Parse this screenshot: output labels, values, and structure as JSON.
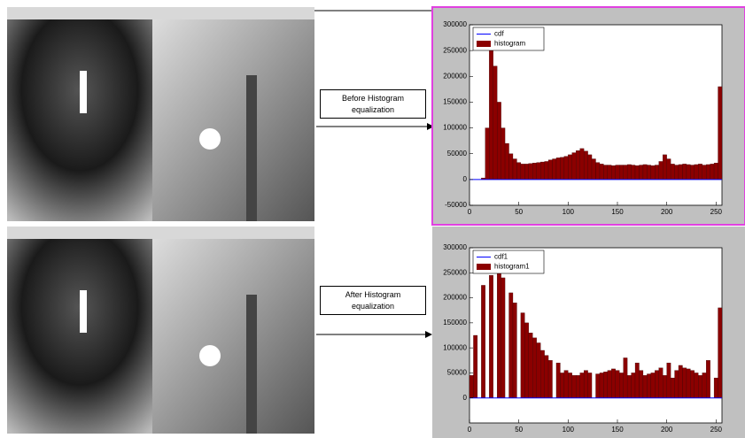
{
  "annotations": [
    "Before Histogram equalization",
    "After Histogram equalization"
  ],
  "chart_data": [
    {
      "type": "histogram",
      "bins": [
        0,
        4,
        8,
        12,
        16,
        20,
        24,
        28,
        32,
        36,
        40,
        44,
        48,
        52,
        56,
        60,
        64,
        68,
        72,
        76,
        80,
        84,
        88,
        92,
        96,
        100,
        104,
        108,
        112,
        116,
        120,
        124,
        128,
        132,
        136,
        140,
        144,
        148,
        152,
        156,
        160,
        164,
        168,
        172,
        176,
        180,
        184,
        188,
        192,
        196,
        200,
        204,
        208,
        212,
        216,
        220,
        224,
        228,
        232,
        236,
        240,
        244,
        248,
        252,
        256
      ],
      "series": [
        {
          "name": "histogram",
          "color": "#8b0000",
          "values": [
            0,
            0,
            0,
            3000,
            100000,
            270000,
            220000,
            150000,
            100000,
            70000,
            50000,
            40000,
            33000,
            30000,
            30000,
            31000,
            32000,
            33000,
            34000,
            35000,
            38000,
            40000,
            42000,
            43000,
            45000,
            48000,
            52000,
            56000,
            60000,
            55000,
            48000,
            40000,
            33000,
            30000,
            28000,
            28000,
            27000,
            28000,
            28000,
            28000,
            29000,
            28000,
            27000,
            28000,
            29000,
            28000,
            27000,
            28000,
            35000,
            48000,
            40000,
            30000,
            28000,
            29000,
            30000,
            29000,
            28000,
            29000,
            30000,
            28000,
            29000,
            30000,
            32000,
            180000
          ]
        }
      ],
      "lines": [
        {
          "name": "cdf",
          "color": "#0000ff",
          "x": [
            0,
            256
          ],
          "values": [
            0,
            0
          ]
        }
      ],
      "xlim": [
        0,
        256
      ],
      "xticks": [
        0,
        50,
        100,
        150,
        200,
        250
      ],
      "ylim": [
        -50000,
        300000
      ],
      "yticks": [
        -50000,
        0,
        50000,
        100000,
        150000,
        200000,
        250000,
        300000
      ],
      "legend": "upper left"
    },
    {
      "type": "histogram",
      "bins": [
        0,
        4,
        8,
        12,
        16,
        20,
        24,
        28,
        32,
        36,
        40,
        44,
        48,
        52,
        56,
        60,
        64,
        68,
        72,
        76,
        80,
        84,
        88,
        92,
        96,
        100,
        104,
        108,
        112,
        116,
        120,
        124,
        128,
        132,
        136,
        140,
        144,
        148,
        152,
        156,
        160,
        164,
        168,
        172,
        176,
        180,
        184,
        188,
        192,
        196,
        200,
        204,
        208,
        212,
        216,
        220,
        224,
        228,
        232,
        236,
        240,
        244,
        248,
        252,
        256
      ],
      "series": [
        {
          "name": "histogram1",
          "color": "#8b0000",
          "values": [
            45000,
            125000,
            0,
            225000,
            0,
            245000,
            0,
            260000,
            240000,
            0,
            210000,
            190000,
            0,
            170000,
            150000,
            130000,
            120000,
            110000,
            95000,
            85000,
            75000,
            0,
            70000,
            50000,
            55000,
            50000,
            45000,
            45000,
            50000,
            55000,
            50000,
            0,
            48000,
            50000,
            52000,
            55000,
            58000,
            55000,
            50000,
            80000,
            45000,
            50000,
            70000,
            55000,
            45000,
            48000,
            50000,
            55000,
            60000,
            45000,
            70000,
            40000,
            55000,
            65000,
            60000,
            58000,
            55000,
            50000,
            45000,
            50000,
            75000,
            0,
            40000,
            180000
          ]
        }
      ],
      "lines": [
        {
          "name": "cdf1",
          "color": "#0000ff",
          "x": [
            0,
            256
          ],
          "values": [
            0,
            0
          ]
        }
      ],
      "xlim": [
        0,
        256
      ],
      "xticks": [
        0,
        50,
        100,
        150,
        200,
        250
      ],
      "ylim": [
        -50000,
        300000
      ],
      "yticks": [
        0,
        50000,
        100000,
        150000,
        200000,
        250000,
        300000
      ],
      "legend": "upper left"
    }
  ]
}
